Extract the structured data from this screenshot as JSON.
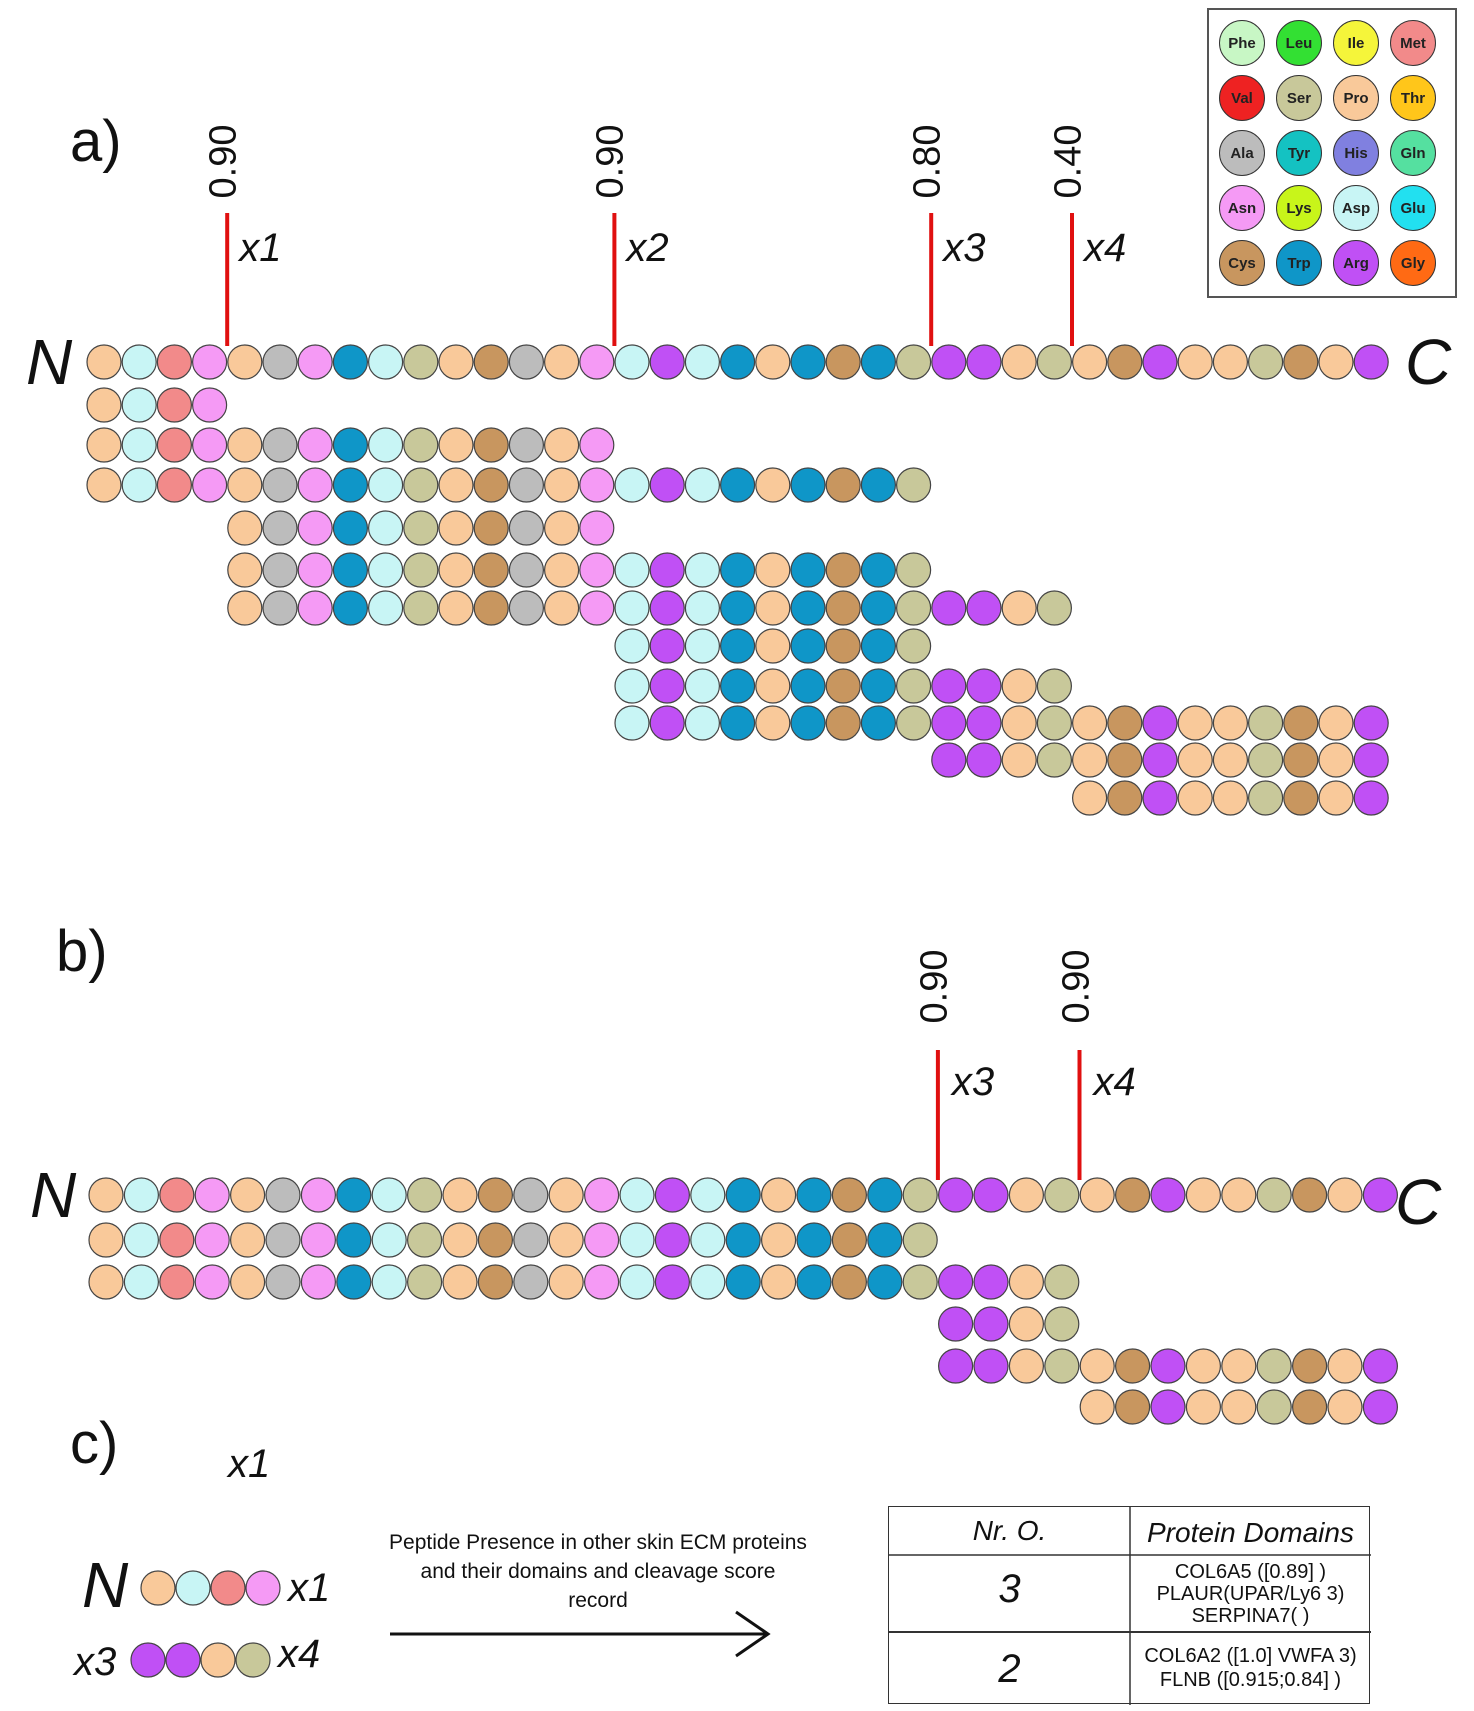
{
  "legend": [
    {
      "aa": "Phe",
      "color": "#c8f7c5"
    },
    {
      "aa": "Leu",
      "color": "#33e033"
    },
    {
      "aa": "Ile",
      "color": "#f5f53a"
    },
    {
      "aa": "Met",
      "color": "#f28a8a"
    },
    {
      "aa": "Val",
      "color": "#ee2222"
    },
    {
      "aa": "Ser",
      "color": "#c8c89a"
    },
    {
      "aa": "Pro",
      "color": "#f9c99a"
    },
    {
      "aa": "Thr",
      "color": "#ffc61a"
    },
    {
      "aa": "Ala",
      "color": "#bcbcbc"
    },
    {
      "aa": "Tyr",
      "color": "#14c2c2"
    },
    {
      "aa": "His",
      "color": "#8080e0"
    },
    {
      "aa": "Gln",
      "color": "#55e0a0"
    },
    {
      "aa": "Asn",
      "color": "#f59af5"
    },
    {
      "aa": "Lys",
      "color": "#c8f51a"
    },
    {
      "aa": "Asp",
      "color": "#c8f5f5"
    },
    {
      "aa": "Glu",
      "color": "#22e0f0"
    },
    {
      "aa": "Cys",
      "color": "#c8965f"
    },
    {
      "aa": "Trp",
      "color": "#0f96c8"
    },
    {
      "aa": "Arg",
      "color": "#c050f5"
    },
    {
      "aa": "Gly",
      "color": "#ff6a14"
    }
  ],
  "sequence": [
    "Pro",
    "Asp",
    "Met",
    "Asn",
    "Pro",
    "Ala",
    "Asn",
    "Trp",
    "Asp",
    "Ser",
    "Pro",
    "Cys",
    "Ala",
    "Pro",
    "Asn",
    "Asp",
    "Arg",
    "Asp",
    "Trp",
    "Pro",
    "Trp",
    "Cys",
    "Trp",
    "Ser",
    "Arg",
    "Arg",
    "Pro",
    "Ser",
    "Pro",
    "Cys",
    "Arg",
    "Pro",
    "Pro",
    "Ser",
    "Cys",
    "Pro",
    "Arg"
  ],
  "panel_a": {
    "label": "a)",
    "n_label": "N",
    "c_label": "C",
    "sites": [
      {
        "name": "x1",
        "score": "0.90",
        "after": 4
      },
      {
        "name": "x2",
        "score": "0.90",
        "after": 15
      },
      {
        "name": "x3",
        "score": "0.80",
        "after": 24
      },
      {
        "name": "x4",
        "score": "0.40",
        "after": 28
      }
    ],
    "peptides": [
      [
        0,
        4
      ],
      [
        0,
        15
      ],
      [
        0,
        24
      ],
      [
        4,
        15
      ],
      [
        4,
        24
      ],
      [
        4,
        28
      ],
      [
        15,
        24
      ],
      [
        15,
        28
      ],
      [
        15,
        37
      ],
      [
        24,
        37
      ],
      [
        28,
        37
      ]
    ]
  },
  "panel_b": {
    "label": "b)",
    "n_label": "N",
    "c_label": "C",
    "sites": [
      {
        "name": "x3",
        "score": "0.90",
        "after": 24
      },
      {
        "name": "x4",
        "score": "0.90",
        "after": 28
      }
    ],
    "peptides": [
      [
        0,
        24
      ],
      [
        0,
        28
      ],
      [
        24,
        28
      ],
      [
        24,
        37
      ],
      [
        28,
        37
      ]
    ]
  },
  "panel_c": {
    "label": "c)",
    "top_site": "x1",
    "n_label": "N",
    "pep1": {
      "start": 0,
      "end": 4,
      "right": "x1"
    },
    "pep2": {
      "start": 24,
      "end": 28,
      "left": "x3",
      "right": "x4"
    },
    "caption": "Peptide Presence in other skin ECM proteins and their domains and cleavage score record",
    "table": {
      "headers": [
        "Nr. O.",
        "Protein Domains"
      ],
      "rows": [
        {
          "count": "3",
          "domains": [
            "COL6A5 ([0.89]  )",
            "PLAUR(UPAR/Ly6 3)",
            "SERPINA7( )"
          ]
        },
        {
          "count": "2",
          "domains": [
            "COL6A2 ([1.0] VWFA 3)",
            "FLNB ([0.915;0.84]  )"
          ]
        }
      ]
    }
  }
}
